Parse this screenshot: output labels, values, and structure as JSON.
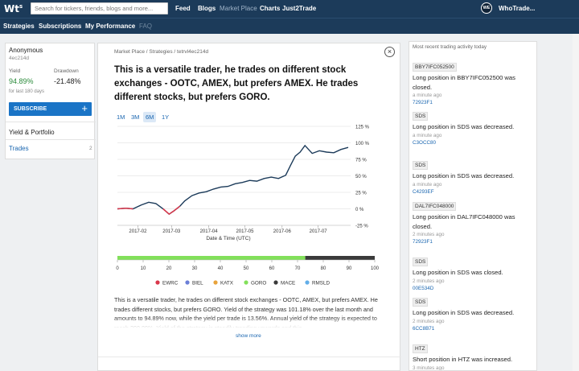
{
  "header": {
    "logo": "Wt",
    "logo_mark": "s",
    "search_placeholder": "Search for tickers, friends, blogs and more...",
    "nav": [
      "Feed",
      "Blogs",
      "Market Place",
      "Charts",
      "Just2Trade"
    ],
    "user_initials": "WE",
    "user_name": "WhoTrade..."
  },
  "subnav": [
    "Strategies",
    "Subscriptions",
    "My Performance",
    "FAQ"
  ],
  "profile": {
    "name": "Anonymous",
    "id": "4ec214d",
    "yield_label": "Yield",
    "yield_value": "94.89%",
    "drawdown_label": "Drawdown",
    "drawdown_value": "-21.48%",
    "period_note": "for last 180 days",
    "subscribe_label": "SUBSCRIBE",
    "subscribe_plus": "+",
    "section_label": "Yield & Portfolio",
    "trades_label": "Trades",
    "trades_count": "2"
  },
  "main": {
    "breadcrumb": "Market Place  /  Strategies  /  tetrvl4ec214d",
    "close": "×",
    "title": "This is a versatile trader, he trades on different stock exchanges - OOTC, AMEX, but prefers AMEX. He trades different stocks, but prefers GORO.",
    "ranges": [
      "1M",
      "3M",
      "6M",
      "1Y"
    ],
    "active_range": "6M",
    "description": "This is a versatile trader, he trades on different stock exchanges - OOTC, AMEX, but prefers AMEX. He trades different stocks, but prefers GORO. Yield of the strategy was 101.18% over the last month and amounts to 94.89% now, while the yield per trade is 13.56%. Annual yield of the strategy is expected to reach 290.89%. Yield of the strategy is steadily trending upwards and this",
    "show_more": "show more"
  },
  "chart_data": {
    "type": "line",
    "xlabel": "Date & Time (UTC)",
    "ylabel": "",
    "x_ticks": [
      "2017-02",
      "2017-03",
      "2017-04",
      "2017-05",
      "2017-06",
      "2017-07"
    ],
    "y_ticks": [
      "125 %",
      "100 %",
      "75 %",
      "50 %",
      "25 %",
      "0 %",
      "-25 %"
    ],
    "ylim": [
      -25,
      125
    ],
    "line_color": "#1c3b5a",
    "drawdown_color": "#d9374b",
    "x": [
      "2017-01-15",
      "2017-01-22",
      "2017-01-28",
      "2017-02-04",
      "2017-02-10",
      "2017-02-16",
      "2017-02-22",
      "2017-02-27",
      "2017-03-03",
      "2017-03-08",
      "2017-03-12",
      "2017-03-18",
      "2017-03-24",
      "2017-03-30",
      "2017-04-05",
      "2017-04-11",
      "2017-04-17",
      "2017-04-23",
      "2017-04-29",
      "2017-05-05",
      "2017-05-11",
      "2017-05-17",
      "2017-05-23",
      "2017-05-29",
      "2017-06-04",
      "2017-06-08",
      "2017-06-12",
      "2017-06-16",
      "2017-06-20",
      "2017-06-26",
      "2017-07-02",
      "2017-07-08",
      "2017-07-14",
      "2017-07-20",
      "2017-07-26"
    ],
    "y": [
      0,
      1,
      0,
      6,
      10,
      8,
      0,
      -8,
      -3,
      4,
      12,
      20,
      24,
      26,
      30,
      33,
      34,
      38,
      40,
      43,
      42,
      46,
      48,
      46,
      51,
      66,
      80,
      86,
      96,
      84,
      88,
      86,
      85,
      90,
      93
    ],
    "drawdown_segments": [
      [
        0,
        2
      ],
      [
        6,
        9
      ]
    ]
  },
  "portfolio_bar": {
    "ticks": [
      "0",
      "10",
      "20",
      "30",
      "40",
      "50",
      "60",
      "70",
      "80",
      "90",
      "100"
    ],
    "segments": [
      {
        "color": "#82e05a",
        "share": 0.73
      },
      {
        "color": "#3a3a3a",
        "share": 0.27
      }
    ],
    "legend": [
      {
        "name": "EWRC",
        "color": "#d9374b"
      },
      {
        "name": "BIEL",
        "color": "#6b7fd7"
      },
      {
        "name": "KATX",
        "color": "#e8a33c"
      },
      {
        "name": "GORO",
        "color": "#82e05a"
      },
      {
        "name": "MACE",
        "color": "#3a3a3a"
      },
      {
        "name": "RMSLD",
        "color": "#62aee8"
      }
    ]
  },
  "activity": {
    "title": "Most recent trading activity today",
    "items": [
      {
        "ticker": "BBY7IFC052500",
        "text": "Long position in BBY7IFC052500 was closed.",
        "time": "a minute ago",
        "link": "72923F1"
      },
      {
        "ticker": "SDS",
        "text": "Long position in SDS was decreased.",
        "time": "a minute ago",
        "link": "C3OCC80"
      },
      {
        "ticker": "SDS",
        "text": "Long position in SDS was decreased.",
        "time": "a minute ago",
        "link": "C4293EF"
      },
      {
        "ticker": "DAL7IFC048000",
        "text": "Long position in DAL7IFC048000 was closed.",
        "time": "2 minutes ago",
        "link": "72923F1"
      },
      {
        "ticker": "SDS",
        "text": "Long position in SDS was closed.",
        "time": "2 minutes ago",
        "link": "00E534D"
      },
      {
        "ticker": "SDS",
        "text": "Long position in SDS was decreased.",
        "time": "2 minutes ago",
        "link": "6CC8B71"
      },
      {
        "ticker": "HTZ",
        "text": "Short position in HTZ was increased.",
        "time": "3 minutes ago",
        "link": ""
      }
    ]
  }
}
